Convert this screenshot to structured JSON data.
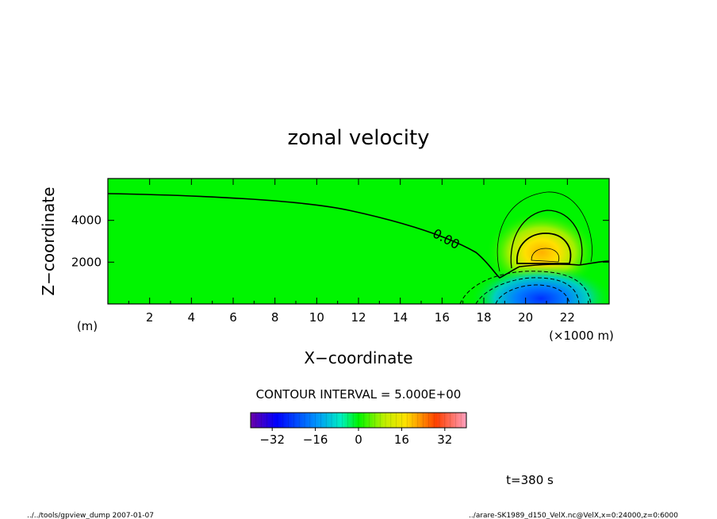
{
  "chart_data": {
    "type": "heatmap",
    "title": "zonal velocity",
    "xlabel": "X−coordinate",
    "ylabel": "Z−coordinate",
    "x_units": "(×1000 m)",
    "y_units": "(m)",
    "xlim": [
      0,
      24
    ],
    "ylim": [
      0,
      6000
    ],
    "x_ticks": [
      2,
      4,
      6,
      8,
      10,
      12,
      14,
      16,
      18,
      20,
      22
    ],
    "y_ticks": [
      2000,
      4000
    ],
    "zero_contour_label": "0.00",
    "contour_interval_text": "CONTOUR INTERVAL = 5.000E+00",
    "colorbar_ticks": [
      -32,
      -16,
      0,
      16,
      32
    ],
    "colorbar_range": [
      -40,
      40
    ],
    "colors": {
      "background_green": "#00f500",
      "negative": "#0050ff",
      "positive": "#ffd000"
    }
  },
  "annotations": {
    "time_label": "t=380 s",
    "footer_left": "../../tools/gpview_dump   2007-01-07",
    "footer_right": "../arare-SK1989_d150_VelX.nc@VelX,x=0:24000,z=0:6000"
  }
}
